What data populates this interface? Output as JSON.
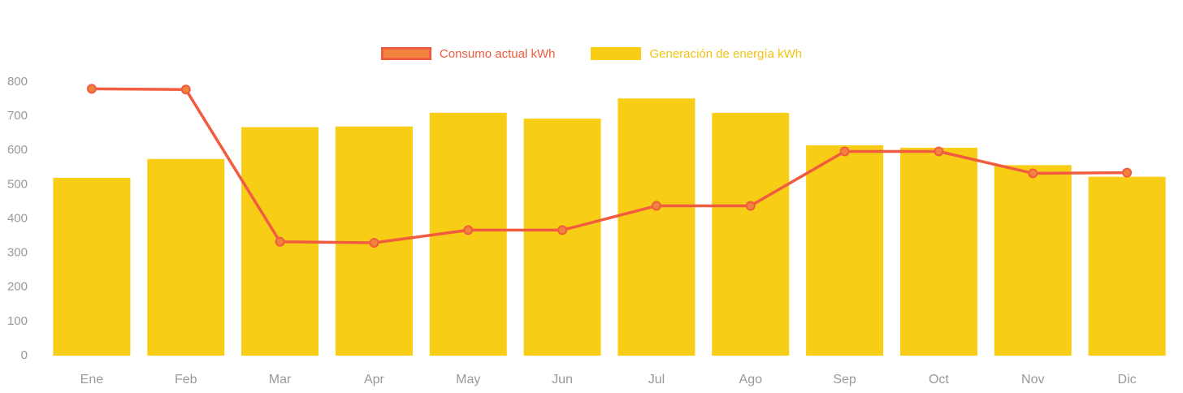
{
  "chart_data": {
    "type": "bar",
    "title": "",
    "xlabel": "",
    "ylabel": "",
    "categories": [
      "Ene",
      "Feb",
      "Mar",
      "Apr",
      "May",
      "Jun",
      "Jul",
      "Ago",
      "Sep",
      "Oct",
      "Nov",
      "Dic"
    ],
    "series": [
      {
        "name": "Consumo actual kWh",
        "type": "line",
        "color": "#F15B40",
        "point_fill": "#F0833D",
        "label_color": "#EE5A3B",
        "values": [
          780,
          778,
          333,
          330,
          367,
          367,
          438,
          438,
          597,
          597,
          533,
          535
        ]
      },
      {
        "name": "Generación de energía kWh",
        "type": "bar",
        "color": "#F7CE15",
        "label_color": "#F2C313",
        "values": [
          520,
          575,
          668,
          670,
          710,
          693,
          752,
          710,
          615,
          608,
          557,
          523
        ]
      }
    ],
    "ylim": [
      0,
      800
    ],
    "yticks": [
      0,
      100,
      200,
      300,
      400,
      500,
      600,
      700,
      800
    ],
    "grid": false,
    "legend_position": "top",
    "axis_label_color": "#999999"
  }
}
